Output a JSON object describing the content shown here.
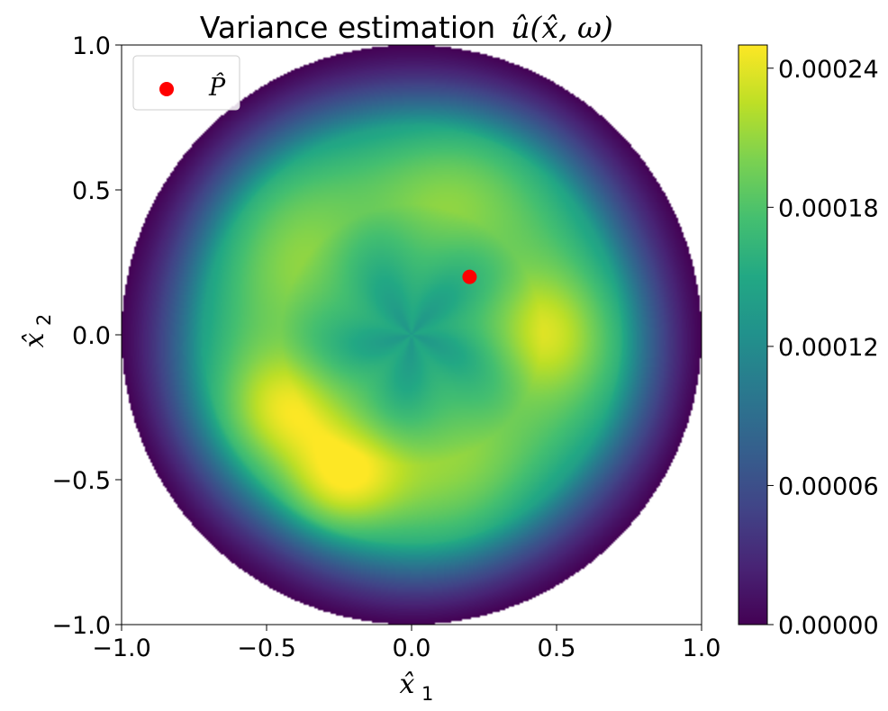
{
  "chart_data": {
    "type": "heatmap",
    "title": "Variance estimation",
    "title_math": "û(x̂, ω)",
    "xlabel": "x̂",
    "xlabel_sub": "1",
    "ylabel": "x̂",
    "ylabel_sub": "2",
    "xlim": [
      -1.0,
      1.0
    ],
    "ylim": [
      -1.0,
      1.0
    ],
    "x_ticks": [
      -1.0,
      -0.5,
      0.0,
      0.5,
      1.0
    ],
    "x_tick_labels": [
      "−1.0",
      "−0.5",
      "0.0",
      "0.5",
      "1.0"
    ],
    "y_ticks": [
      -1.0,
      -0.5,
      0.0,
      0.5,
      1.0
    ],
    "y_tick_labels": [
      "−1.0",
      "−0.5",
      "0.0",
      "0.5",
      "1.0"
    ],
    "domain": "unit disk",
    "colormap": "viridis",
    "colorbar": {
      "min": 0.0,
      "max": 0.00025,
      "ticks": [
        0.0,
        6e-05,
        0.00012,
        0.00018,
        0.00024
      ],
      "tick_labels": [
        "0.00000",
        "0.00006",
        "0.00012",
        "0.00018",
        "0.00024"
      ]
    },
    "field_features": [
      {
        "kind": "boundary",
        "value": 0.0
      },
      {
        "kind": "center_low",
        "x": 0.0,
        "y": 0.05,
        "value": 0.00014
      },
      {
        "kind": "ring_high",
        "radius": 0.45,
        "value": 0.0002
      },
      {
        "kind": "peak",
        "x": -0.27,
        "y": -0.53,
        "value": 0.00025
      },
      {
        "kind": "peak",
        "x": -0.45,
        "y": -0.25,
        "value": 0.00024
      },
      {
        "kind": "peak",
        "x": 0.45,
        "y": 0.0,
        "value": 0.00023
      },
      {
        "kind": "peak",
        "x": -0.15,
        "y": -0.45,
        "value": 0.00023
      }
    ],
    "marker": {
      "label": "P̂",
      "x": 0.2,
      "y": 0.2,
      "color": "#ff0000"
    },
    "legend": {
      "placement": "top-left",
      "entries": [
        {
          "label": "P̂",
          "color": "#ff0000",
          "marker": "circle"
        }
      ]
    }
  }
}
